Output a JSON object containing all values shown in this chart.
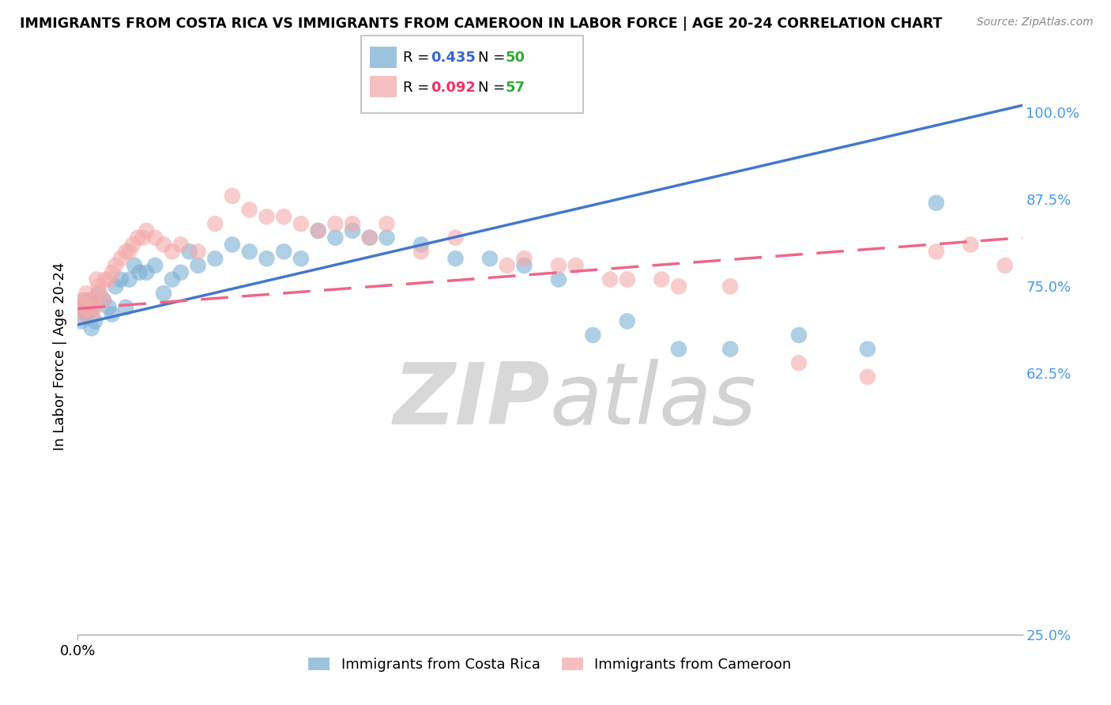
{
  "title": "IMMIGRANTS FROM COSTA RICA VS IMMIGRANTS FROM CAMEROON IN LABOR FORCE | AGE 20-24 CORRELATION CHART",
  "source": "Source: ZipAtlas.com",
  "ylabel": "In Labor Force | Age 20-24",
  "legend_label_blue": "Immigrants from Costa Rica",
  "legend_label_pink": "Immigrants from Cameroon",
  "R_blue": 0.435,
  "N_blue": 50,
  "R_pink": 0.092,
  "N_pink": 57,
  "blue_color": "#7BAFD4",
  "pink_color": "#F4AAAA",
  "blue_line_color": "#4477CC",
  "pink_line_color": "#EE6688",
  "xlim": [
    0.0,
    0.55
  ],
  "ylim": [
    0.25,
    1.05
  ],
  "yticks": [
    0.25,
    0.625,
    0.75,
    0.875,
    1.0
  ],
  "ytick_labels": [
    "25.0%",
    "62.5%",
    "75.0%",
    "87.5%",
    "100.0%"
  ],
  "blue_x": [
    0.001,
    0.002,
    0.003,
    0.004,
    0.005,
    0.006,
    0.007,
    0.008,
    0.009,
    0.01,
    0.012,
    0.015,
    0.018,
    0.02,
    0.022,
    0.025,
    0.028,
    0.03,
    0.033,
    0.036,
    0.04,
    0.045,
    0.05,
    0.055,
    0.06,
    0.065,
    0.07,
    0.08,
    0.09,
    0.1,
    0.11,
    0.12,
    0.13,
    0.14,
    0.15,
    0.16,
    0.17,
    0.18,
    0.2,
    0.22,
    0.24,
    0.26,
    0.28,
    0.3,
    0.32,
    0.35,
    0.38,
    0.42,
    0.46,
    0.5
  ],
  "blue_y": [
    0.72,
    0.7,
    0.72,
    0.73,
    0.71,
    0.72,
    0.73,
    0.69,
    0.72,
    0.7,
    0.74,
    0.73,
    0.72,
    0.71,
    0.75,
    0.76,
    0.72,
    0.76,
    0.78,
    0.77,
    0.77,
    0.78,
    0.74,
    0.76,
    0.77,
    0.8,
    0.78,
    0.79,
    0.81,
    0.8,
    0.79,
    0.8,
    0.79,
    0.83,
    0.82,
    0.83,
    0.82,
    0.82,
    0.81,
    0.79,
    0.79,
    0.78,
    0.76,
    0.68,
    0.7,
    0.66,
    0.66,
    0.68,
    0.66,
    0.87
  ],
  "pink_x": [
    0.001,
    0.002,
    0.003,
    0.004,
    0.005,
    0.006,
    0.007,
    0.008,
    0.009,
    0.01,
    0.011,
    0.012,
    0.013,
    0.015,
    0.016,
    0.018,
    0.02,
    0.022,
    0.025,
    0.028,
    0.03,
    0.032,
    0.035,
    0.038,
    0.04,
    0.045,
    0.05,
    0.055,
    0.06,
    0.07,
    0.08,
    0.09,
    0.1,
    0.11,
    0.12,
    0.13,
    0.14,
    0.15,
    0.16,
    0.17,
    0.18,
    0.2,
    0.22,
    0.25,
    0.28,
    0.31,
    0.34,
    0.38,
    0.42,
    0.46,
    0.5,
    0.52,
    0.54,
    0.26,
    0.29,
    0.32,
    0.35
  ],
  "pink_y": [
    0.72,
    0.71,
    0.73,
    0.72,
    0.74,
    0.73,
    0.72,
    0.71,
    0.73,
    0.72,
    0.76,
    0.75,
    0.74,
    0.73,
    0.76,
    0.76,
    0.77,
    0.78,
    0.79,
    0.8,
    0.8,
    0.81,
    0.82,
    0.82,
    0.83,
    0.82,
    0.81,
    0.8,
    0.81,
    0.8,
    0.84,
    0.88,
    0.86,
    0.85,
    0.85,
    0.84,
    0.83,
    0.84,
    0.84,
    0.82,
    0.84,
    0.8,
    0.82,
    0.78,
    0.78,
    0.76,
    0.76,
    0.75,
    0.64,
    0.62,
    0.8,
    0.81,
    0.78,
    0.79,
    0.78,
    0.76,
    0.75
  ]
}
